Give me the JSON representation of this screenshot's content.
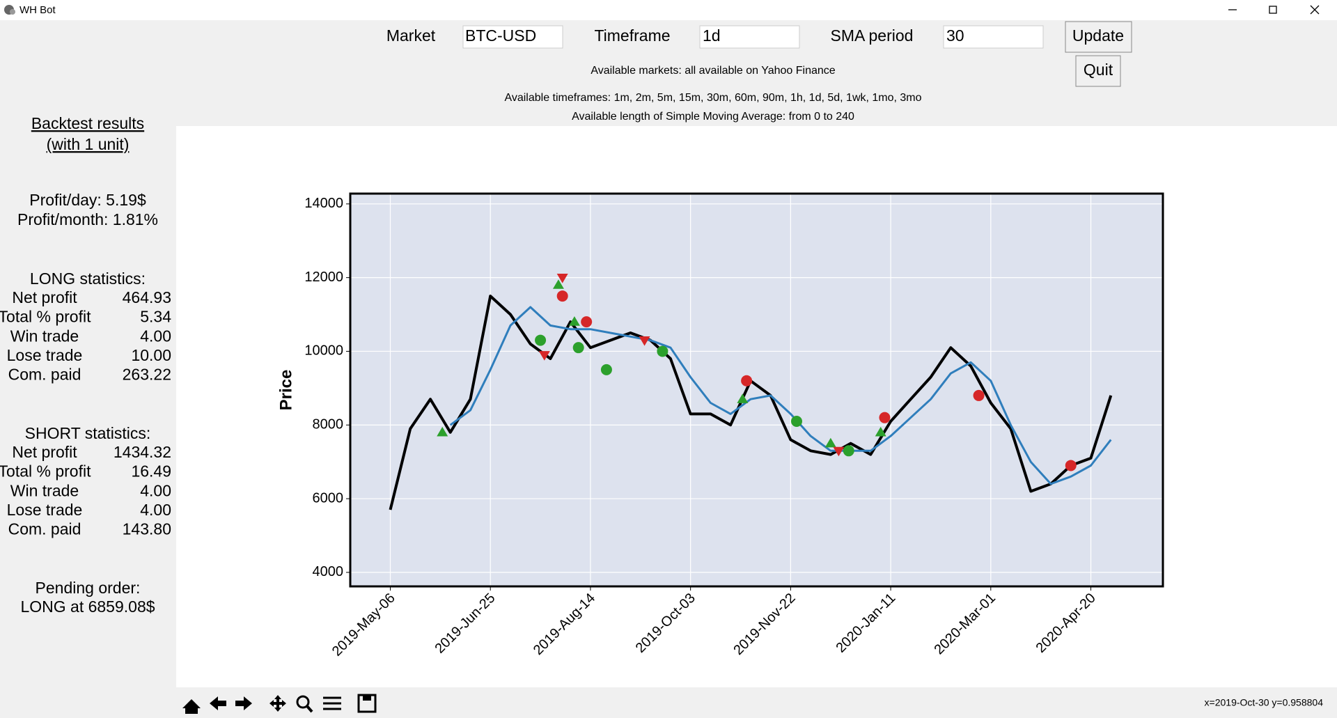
{
  "window": {
    "title": "WH Bot"
  },
  "controls": {
    "market_label": "Market",
    "market_value": "BTC-USD",
    "timeframe_label": "Timeframe",
    "timeframe_value": "1d",
    "sma_label": "SMA period",
    "sma_value": "30",
    "update": "Update",
    "quit": "Quit"
  },
  "info": [
    "Available markets: all available on Yahoo Finance",
    "Available timeframes: 1m, 2m, 5m, 15m, 30m, 60m, 90m, 1h, 1d, 5d, 1wk, 1mo, 3mo",
    "Available length of Simple Moving Average: from 0 to 240"
  ],
  "sidebar": {
    "title_line1": "Backtest results",
    "title_line2": "(with 1 unit)",
    "profit_day": "Profit/day: 5.19$",
    "profit_month": "Profit/month: 1.81%",
    "long": {
      "heading": "LONG statistics:",
      "rows": [
        [
          "Net profit",
          "464.93"
        ],
        [
          "Total % profit",
          "5.34"
        ],
        [
          "Win trade",
          "4.00"
        ],
        [
          "Lose trade",
          "10.00"
        ],
        [
          "Com. paid",
          "263.22"
        ]
      ]
    },
    "short": {
      "heading": "SHORT statistics:",
      "rows": [
        [
          "Net profit",
          "1434.32"
        ],
        [
          "Total % profit",
          "16.49"
        ],
        [
          "Win trade",
          "4.00"
        ],
        [
          "Lose trade",
          "4.00"
        ],
        [
          "Com. paid",
          "143.80"
        ]
      ]
    },
    "pending_heading": "Pending order:",
    "pending_value": "LONG at 6859.08$"
  },
  "chart_data": {
    "type": "line",
    "y_label": "Price",
    "x": [
      "2019-May-06",
      "2019-May-16",
      "2019-May-26",
      "2019-Jun-05",
      "2019-Jun-15",
      "2019-Jun-25",
      "2019-Jul-05",
      "2019-Jul-15",
      "2019-Jul-25",
      "2019-Aug-04",
      "2019-Aug-14",
      "2019-Aug-24",
      "2019-Sep-03",
      "2019-Sep-13",
      "2019-Sep-23",
      "2019-Oct-03",
      "2019-Oct-13",
      "2019-Oct-23",
      "2019-Nov-02",
      "2019-Nov-12",
      "2019-Nov-22",
      "2019-Dec-02",
      "2019-Dec-12",
      "2019-Dec-22",
      "2020-Jan-01",
      "2020-Jan-11",
      "2020-Jan-21",
      "2020-Jan-31",
      "2020-Feb-10",
      "2020-Feb-20",
      "2020-Mar-01",
      "2020-Mar-11",
      "2020-Mar-21",
      "2020-Mar-31",
      "2020-Apr-10",
      "2020-Apr-20",
      "2020-Apr-30"
    ],
    "series": [
      {
        "color": "#000000",
        "values": [
          5700,
          7900,
          8700,
          7800,
          8700,
          11500,
          11000,
          10200,
          9800,
          10800,
          10100,
          10300,
          10500,
          10300,
          9800,
          8300,
          8300,
          8000,
          9200,
          8800,
          7600,
          7300,
          7200,
          7500,
          7200,
          8100,
          8700,
          9300,
          10100,
          9600,
          8600,
          7900,
          6200,
          6400,
          6900,
          7100,
          8800
        ]
      },
      {
        "color": "#2f7ebc",
        "values": [
          null,
          null,
          null,
          8000,
          8400,
          9500,
          10700,
          11200,
          10700,
          10600,
          10600,
          10500,
          10400,
          10300,
          10100,
          9300,
          8600,
          8300,
          8700,
          8800,
          8300,
          7700,
          7300,
          7300,
          7300,
          7700,
          8200,
          8700,
          9400,
          9700,
          9200,
          8000,
          7000,
          6400,
          6600,
          6900,
          7600
        ]
      }
    ],
    "markers": [
      {
        "color": "#2ca02c",
        "marker": "triangle-up",
        "x": [
          "2019-Jun-01",
          "2019-Jul-29",
          "2019-Aug-06",
          "2019-Oct-29",
          "2019-Dec-12",
          "2020-Jan-06"
        ],
        "values": [
          7800,
          11800,
          10800,
          8700,
          7500,
          7800
        ]
      },
      {
        "color": "#d62728",
        "marker": "circle",
        "x": [
          "2019-Jul-31",
          "2019-Aug-12",
          "2019-Oct-31",
          "2020-Jan-08",
          "2020-Feb-24",
          "2020-Apr-10"
        ],
        "values": [
          11500,
          10800,
          9200,
          8200,
          8800,
          6900
        ]
      },
      {
        "color": "#2ca02c",
        "marker": "circle",
        "x": [
          "2019-Jul-20",
          "2019-Aug-08",
          "2019-Aug-22",
          "2019-Sep-19",
          "2019-Nov-25",
          "2019-Dec-21"
        ],
        "values": [
          10300,
          10100,
          9500,
          10000,
          8100,
          7300
        ]
      },
      {
        "color": "#d62728",
        "marker": "triangle-down",
        "x": [
          "2019-Jul-22",
          "2019-Jul-31",
          "2019-Sep-10",
          "2019-Dec-16"
        ],
        "values": [
          9900,
          12000,
          10300,
          7300
        ]
      }
    ],
    "xlim": [
      "2019-Apr-16",
      "2020-May-26"
    ],
    "xticks": [
      "2019-May-06",
      "2019-Jun-25",
      "2019-Aug-14",
      "2019-Oct-03",
      "2019-Nov-22",
      "2020-Jan-11",
      "2020-Mar-01",
      "2020-Apr-20"
    ],
    "ylim": [
      3620,
      14280
    ],
    "yticks": [
      4000,
      6000,
      8000,
      10000,
      12000,
      14000
    ],
    "grid": true,
    "background": "#dde2ee"
  },
  "status": "x=2019-Oct-30 y=0.958804"
}
